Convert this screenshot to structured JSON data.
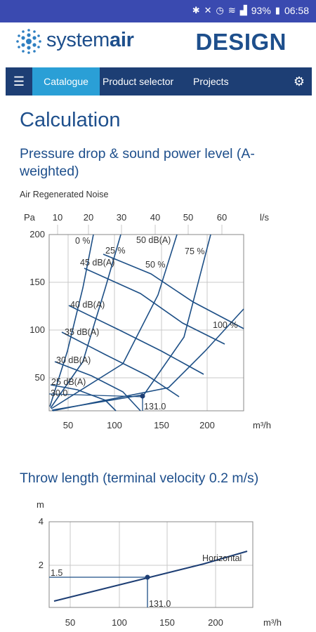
{
  "status": {
    "battery": "93%",
    "time": "06:58"
  },
  "header": {
    "brand_light": "system",
    "brand_bold": "air",
    "design": "DESIGN"
  },
  "nav": {
    "menu_icon": "hamburger-icon",
    "catalogue": "Catalogue",
    "product_selector": "Product selector",
    "projects": "Projects",
    "settings_icon": "gear-icon"
  },
  "page": {
    "title": "Calculation",
    "section1_title": "Pressure drop & sound power level (A-weighted)",
    "section1_subtitle": "Air Regenerated Noise",
    "section2_title": "Throw length (terminal velocity 0.2 m/s)"
  },
  "chart_data": [
    {
      "type": "line",
      "title": "Pressure drop & sound power level (A-weighted)",
      "subtitle": "Air Regenerated Noise",
      "ylabel": "Pa",
      "x_top_label": "l/s",
      "xlabel": "m³/h",
      "x_top_ticks": [
        "10",
        "20",
        "30",
        "40",
        "50",
        "60"
      ],
      "x_bottom_ticks": [
        "50",
        "100",
        "150",
        "200"
      ],
      "y_ticks": [
        "50",
        "100",
        "150",
        "200"
      ],
      "ylim": [
        0,
        200
      ],
      "xlim": [
        30,
        240
      ],
      "damper_labels": [
        "0 %",
        "25 %",
        "50 %",
        "75 %",
        "100 %"
      ],
      "sound_labels": [
        "50 dB(A)",
        "45 dB(A)",
        "40 dB(A)",
        "35 dB(A)",
        "30 dB(A)",
        "25 dB(A)"
      ],
      "operating_point": {
        "x": 131.0,
        "y": 30.0,
        "x_label": "131.0",
        "y_label": "30.0"
      }
    },
    {
      "type": "line",
      "title": "Throw length (terminal velocity 0.2 m/s)",
      "ylabel": "m",
      "xlabel": "m³/h",
      "x_ticks": [
        "50",
        "100",
        "150",
        "200"
      ],
      "y_ticks": [
        "4",
        "2"
      ],
      "xlim": [
        25,
        240
      ],
      "ylim": [
        0,
        4
      ],
      "series": [
        {
          "name": "Horizontal",
          "x": [
            30,
            240
          ],
          "y": [
            0.45,
            2.45
          ]
        }
      ],
      "operating_point": {
        "x": 131.0,
        "y": 1.5,
        "x_label": "131.0",
        "y_label": "1.5"
      }
    }
  ]
}
